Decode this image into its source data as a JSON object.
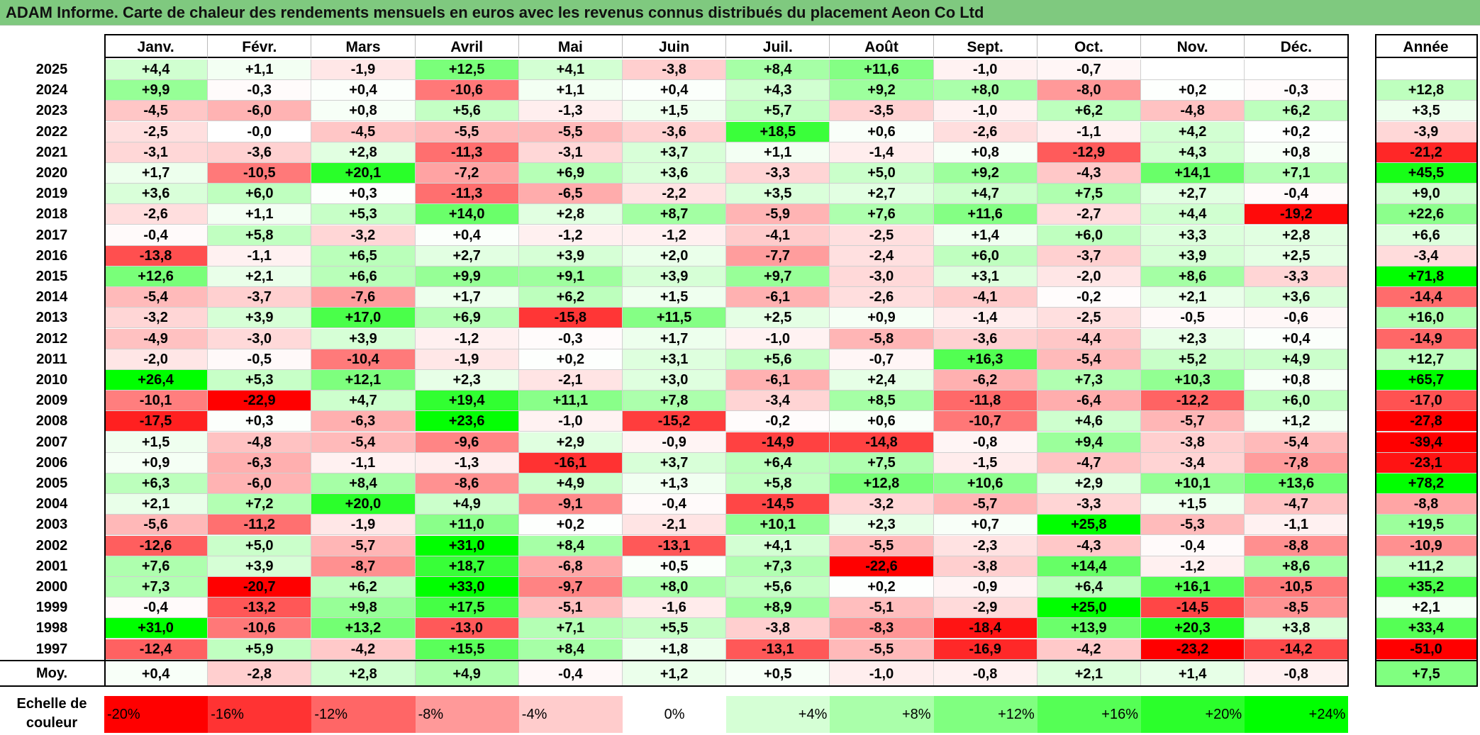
{
  "title": "ADAM Informe. Carte de chaleur des rendements mensuels en euros avec les revenus connus distribués du placement Aeon Co Ltd",
  "colors": {
    "title_bg": "#7fc97f",
    "negative_max": "#ff0000",
    "neutral": "#ffffff",
    "positive_max": "#00ff00"
  },
  "chart_data": {
    "type": "heatmap",
    "columns": [
      "Janv.",
      "Févr.",
      "Mars",
      "Avril",
      "Mai",
      "Juin",
      "Juil.",
      "Août",
      "Sept.",
      "Oct.",
      "Nov.",
      "Déc."
    ],
    "year_column": "Année",
    "rows": [
      {
        "year": "2025",
        "values": [
          "+4,4",
          "+1,1",
          "-1,9",
          "+12,5",
          "+4,1",
          "-3,8",
          "+8,4",
          "+11,6",
          "-1,0",
          "-0,7",
          "",
          ""
        ],
        "annual": ""
      },
      {
        "year": "2024",
        "values": [
          "+9,9",
          "-0,3",
          "+0,4",
          "-10,6",
          "+1,1",
          "+0,4",
          "+4,3",
          "+9,2",
          "+8,0",
          "-8,0",
          "+0,2",
          "-0,3"
        ],
        "annual": "+12,8"
      },
      {
        "year": "2023",
        "values": [
          "-4,5",
          "-6,0",
          "+0,8",
          "+5,6",
          "-1,3",
          "+1,5",
          "+5,7",
          "-3,5",
          "-1,0",
          "+6,2",
          "-4,8",
          "+6,2"
        ],
        "annual": "+3,5"
      },
      {
        "year": "2022",
        "values": [
          "-2,5",
          "-0,0",
          "-4,5",
          "-5,5",
          "-5,5",
          "-3,6",
          "+18,5",
          "+0,6",
          "-2,6",
          "-1,1",
          "+4,2",
          "+0,2"
        ],
        "annual": "-3,9"
      },
      {
        "year": "2021",
        "values": [
          "-3,1",
          "-3,6",
          "+2,8",
          "-11,3",
          "-3,1",
          "+3,7",
          "+1,1",
          "-1,4",
          "+0,8",
          "-12,9",
          "+4,3",
          "+0,8"
        ],
        "annual": "-21,2"
      },
      {
        "year": "2020",
        "values": [
          "+1,7",
          "-10,5",
          "+20,1",
          "-7,2",
          "+6,9",
          "+3,6",
          "-3,3",
          "+5,0",
          "+9,2",
          "-4,3",
          "+14,1",
          "+7,1"
        ],
        "annual": "+45,5"
      },
      {
        "year": "2019",
        "values": [
          "+3,6",
          "+6,0",
          "+0,3",
          "-11,3",
          "-6,5",
          "-2,2",
          "+3,5",
          "+2,7",
          "+4,7",
          "+7,5",
          "+2,7",
          "-0,4"
        ],
        "annual": "+9,0"
      },
      {
        "year": "2018",
        "values": [
          "-2,6",
          "+1,1",
          "+5,3",
          "+14,0",
          "+2,8",
          "+8,7",
          "-5,9",
          "+7,6",
          "+11,6",
          "-2,7",
          "+4,4",
          "-19,2"
        ],
        "annual": "+22,6"
      },
      {
        "year": "2017",
        "values": [
          "-0,4",
          "+5,8",
          "-3,2",
          "+0,4",
          "-1,2",
          "-1,2",
          "-4,1",
          "-2,5",
          "+1,4",
          "+6,0",
          "+3,3",
          "+2,8"
        ],
        "annual": "+6,6"
      },
      {
        "year": "2016",
        "values": [
          "-13,8",
          "-1,1",
          "+6,5",
          "+2,7",
          "+3,9",
          "+2,0",
          "-7,7",
          "-2,4",
          "+6,0",
          "-3,7",
          "+3,9",
          "+2,5"
        ],
        "annual": "-3,4"
      },
      {
        "year": "2015",
        "values": [
          "+12,6",
          "+2,1",
          "+6,6",
          "+9,9",
          "+9,1",
          "+3,9",
          "+9,7",
          "-3,0",
          "+3,1",
          "-2,0",
          "+8,6",
          "-3,3"
        ],
        "annual": "+71,8"
      },
      {
        "year": "2014",
        "values": [
          "-5,4",
          "-3,7",
          "-7,6",
          "+1,7",
          "+6,2",
          "+1,5",
          "-6,1",
          "-2,6",
          "-4,1",
          "-0,2",
          "+2,1",
          "+3,6"
        ],
        "annual": "-14,4"
      },
      {
        "year": "2013",
        "values": [
          "-3,2",
          "+3,9",
          "+17,0",
          "+6,9",
          "-15,8",
          "+11,5",
          "+2,5",
          "+0,9",
          "-1,4",
          "-2,5",
          "-0,5",
          "-0,6"
        ],
        "annual": "+16,0"
      },
      {
        "year": "2012",
        "values": [
          "-4,9",
          "-3,0",
          "+3,9",
          "-1,2",
          "-0,3",
          "+1,7",
          "-1,0",
          "-5,8",
          "-3,6",
          "-4,4",
          "+2,3",
          "+0,4"
        ],
        "annual": "-14,9"
      },
      {
        "year": "2011",
        "values": [
          "-2,0",
          "-0,5",
          "-10,4",
          "-1,9",
          "+0,2",
          "+3,1",
          "+5,6",
          "-0,7",
          "+16,3",
          "-5,4",
          "+5,2",
          "+4,9"
        ],
        "annual": "+12,7"
      },
      {
        "year": "2010",
        "values": [
          "+26,4",
          "+5,3",
          "+12,1",
          "+2,3",
          "-2,1",
          "+3,0",
          "-6,1",
          "+2,4",
          "-6,2",
          "+7,3",
          "+10,3",
          "+0,8"
        ],
        "annual": "+65,7"
      },
      {
        "year": "2009",
        "values": [
          "-10,1",
          "-22,9",
          "+4,7",
          "+19,4",
          "+11,1",
          "+7,8",
          "-3,4",
          "+8,5",
          "-11,8",
          "-6,4",
          "-12,2",
          "+6,0"
        ],
        "annual": "-17,0"
      },
      {
        "year": "2008",
        "values": [
          "-17,5",
          "+0,3",
          "-6,3",
          "+23,6",
          "-1,0",
          "-15,2",
          "-0,2",
          "+0,6",
          "-10,7",
          "+4,6",
          "-5,7",
          "+1,2"
        ],
        "annual": "-27,8"
      },
      {
        "year": "2007",
        "values": [
          "+1,5",
          "-4,8",
          "-5,4",
          "-9,6",
          "+2,9",
          "-0,9",
          "-14,9",
          "-14,8",
          "-0,8",
          "+9,4",
          "-3,8",
          "-5,4"
        ],
        "annual": "-39,4"
      },
      {
        "year": "2006",
        "values": [
          "+0,9",
          "-6,3",
          "-1,1",
          "-1,3",
          "-16,1",
          "+3,7",
          "+6,4",
          "+7,5",
          "-1,5",
          "-4,7",
          "-3,4",
          "-7,8"
        ],
        "annual": "-23,1"
      },
      {
        "year": "2005",
        "values": [
          "+6,3",
          "-6,0",
          "+8,4",
          "-8,6",
          "+4,9",
          "+1,3",
          "+5,8",
          "+12,8",
          "+10,6",
          "+2,9",
          "+10,1",
          "+13,6"
        ],
        "annual": "+78,2"
      },
      {
        "year": "2004",
        "values": [
          "+2,1",
          "+7,2",
          "+20,0",
          "+4,9",
          "-9,1",
          "-0,4",
          "-14,5",
          "-3,2",
          "-5,7",
          "-3,3",
          "+1,5",
          "-4,7"
        ],
        "annual": "-8,8"
      },
      {
        "year": "2003",
        "values": [
          "-5,6",
          "-11,2",
          "-1,9",
          "+11,0",
          "+0,2",
          "-2,1",
          "+10,1",
          "+2,3",
          "+0,7",
          "+25,8",
          "-5,3",
          "-1,1"
        ],
        "annual": "+19,5"
      },
      {
        "year": "2002",
        "values": [
          "-12,6",
          "+5,0",
          "-5,7",
          "+31,0",
          "+8,4",
          "-13,1",
          "+4,1",
          "-5,5",
          "-2,3",
          "-4,3",
          "-0,4",
          "-8,8"
        ],
        "annual": "-10,9"
      },
      {
        "year": "2001",
        "values": [
          "+7,6",
          "+3,9",
          "-8,7",
          "+18,7",
          "-6,8",
          "+0,5",
          "+7,3",
          "-22,6",
          "-3,8",
          "+14,4",
          "-1,2",
          "+8,6"
        ],
        "annual": "+11,2"
      },
      {
        "year": "2000",
        "values": [
          "+7,3",
          "-20,7",
          "+6,2",
          "+33,0",
          "-9,7",
          "+8,0",
          "+5,6",
          "+0,2",
          "-0,9",
          "+6,4",
          "+16,1",
          "-10,5"
        ],
        "annual": "+35,2"
      },
      {
        "year": "1999",
        "values": [
          "-0,4",
          "-13,2",
          "+9,8",
          "+17,5",
          "-5,1",
          "-1,6",
          "+8,9",
          "-5,1",
          "-2,9",
          "+25,0",
          "-14,5",
          "-8,5"
        ],
        "annual": "+2,1"
      },
      {
        "year": "1998",
        "values": [
          "+31,0",
          "-10,6",
          "+13,2",
          "-13,0",
          "+7,1",
          "+5,5",
          "-3,8",
          "-8,3",
          "-18,4",
          "+13,9",
          "+20,3",
          "+3,8"
        ],
        "annual": "+33,4"
      },
      {
        "year": "1997",
        "values": [
          "-12,4",
          "+5,9",
          "-4,2",
          "+15,5",
          "+8,4",
          "+1,8",
          "-13,1",
          "-5,5",
          "-16,9",
          "-4,2",
          "-23,2",
          "-14,2"
        ],
        "annual": "-51,0"
      }
    ],
    "average": {
      "label": "Moy.",
      "values": [
        "+0,4",
        "-2,8",
        "+2,8",
        "+4,9",
        "-0,4",
        "+1,2",
        "+0,5",
        "-1,0",
        "-0,8",
        "+2,1",
        "+1,4",
        "-0,8"
      ],
      "annual": "+7,5"
    },
    "scale": {
      "label": "Echelle de couleur",
      "stops": [
        "-20%",
        "-16%",
        "-12%",
        "-8%",
        "-4%",
        "0%",
        "+4%",
        "+8%",
        "+12%",
        "+16%",
        "+20%",
        "+24%"
      ]
    }
  }
}
